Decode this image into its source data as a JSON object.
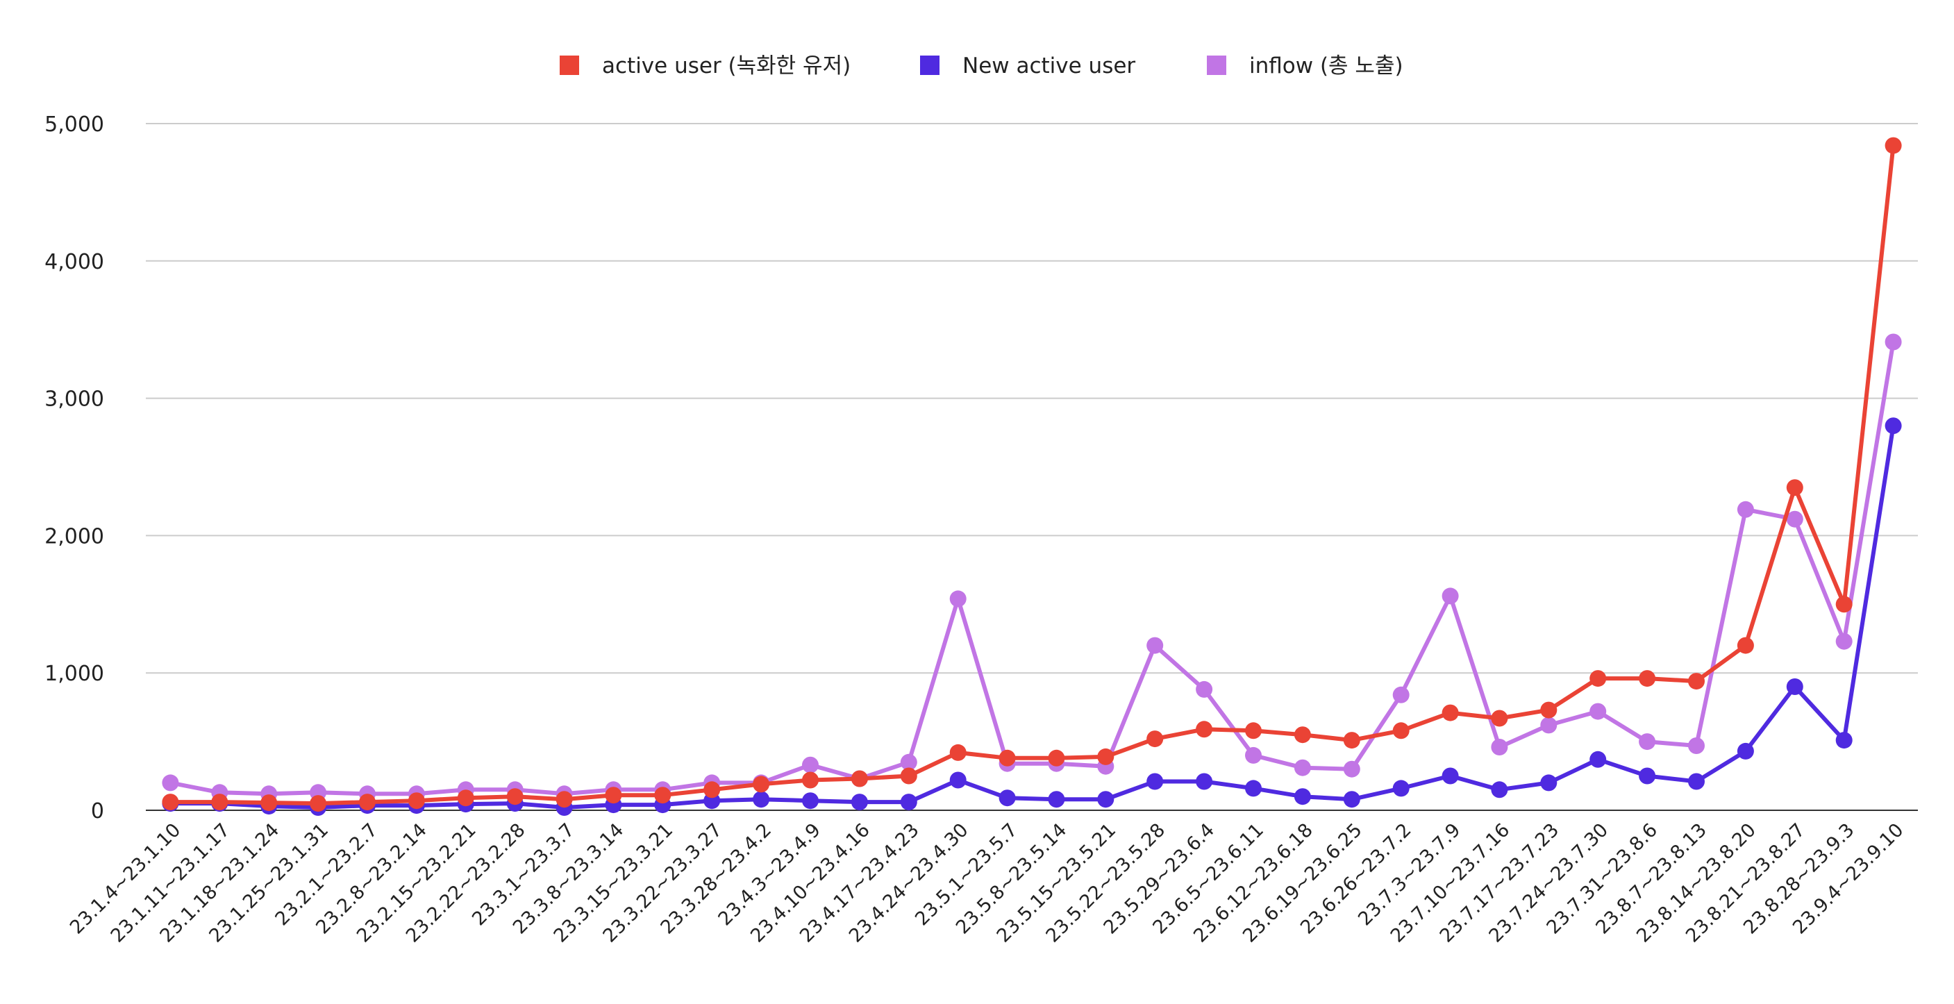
{
  "chart_data": {
    "type": "line",
    "title": "",
    "xlabel": "",
    "ylabel": "",
    "ylim": [
      0,
      5000
    ],
    "yticks": [
      0,
      1000,
      2000,
      3000,
      4000,
      5000
    ],
    "ytick_labels": [
      "0",
      "1,000",
      "2,000",
      "3,000",
      "4,000",
      "5,000"
    ],
    "grid": true,
    "legend_position": "top-center",
    "categories": [
      "23.1.4~23.1.10",
      "23.1.11~23.1.17",
      "23.1.18~23.1.24",
      "23.1.25~23.1.31",
      "23.2.1~23.2.7",
      "23.2.8~23.2.14",
      "23.2.15~23.2.21",
      "23.2.22~23.2.28",
      "23.3.1~23.3.7",
      "23.3.8~23.3.14",
      "23.3.15~23.3.21",
      "23.3.22~23.3.27",
      "23.3.28~23.4.2",
      "23.4.3~23.4.9",
      "23.4.10~23.4.16",
      "23.4.17~23.4.23",
      "23.4.24~23.4.30",
      "23.5.1~23.5.7",
      "23.5.8~23.5.14",
      "23.5.15~23.5.21",
      "23.5.22~23.5.28",
      "23.5.29~23.6.4",
      "23.6.5~23.6.11",
      "23.6.12~23.6.18",
      "23.6.19~23.6.25",
      "23.6.26~23.7.2",
      "23.7.3~23.7.9",
      "23.7.10~23.7.16",
      "23.7.17~23.7.23",
      "23.7.24~23.7.30",
      "23.7.31~23.8.6",
      "23.8.7~23.8.13",
      "23.8.14~23.8.20",
      "23.8.21~23.8.27",
      "23.8.28~23.9.3",
      "23.9.4~23.9.10"
    ],
    "series": [
      {
        "name": "active user (녹화한 유저)",
        "color": "#ea4335",
        "values": [
          60,
          60,
          55,
          50,
          60,
          70,
          90,
          100,
          80,
          110,
          110,
          150,
          190,
          220,
          230,
          250,
          420,
          380,
          380,
          390,
          520,
          590,
          580,
          550,
          510,
          580,
          710,
          670,
          730,
          960,
          960,
          940,
          1200,
          2350,
          1500,
          4840
        ]
      },
      {
        "name": "New active user",
        "color": "#4f2ae0",
        "values": [
          50,
          50,
          30,
          20,
          35,
          35,
          45,
          50,
          20,
          40,
          40,
          70,
          80,
          70,
          60,
          60,
          220,
          90,
          80,
          80,
          210,
          210,
          160,
          100,
          80,
          160,
          250,
          150,
          200,
          370,
          250,
          210,
          430,
          900,
          510,
          2800
        ]
      },
      {
        "name": "inflow (총 노출)",
        "color": "#c175e5",
        "values": [
          200,
          130,
          120,
          130,
          120,
          120,
          150,
          150,
          120,
          150,
          150,
          200,
          200,
          330,
          230,
          350,
          1540,
          340,
          340,
          320,
          1200,
          880,
          400,
          310,
          300,
          840,
          1560,
          460,
          620,
          720,
          500,
          470,
          2190,
          2120,
          1230,
          3410
        ]
      }
    ]
  }
}
